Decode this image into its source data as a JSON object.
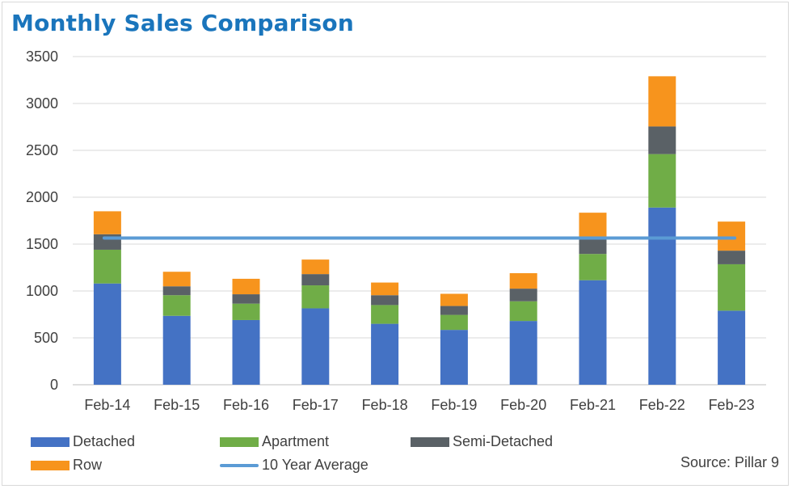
{
  "title": "Monthly Sales Comparison",
  "source": "Source: Pillar 9",
  "chart_data": {
    "type": "bar",
    "stacked": true,
    "title": "Monthly Sales Comparison",
    "categories": [
      "Feb-14",
      "Feb-15",
      "Feb-16",
      "Feb-17",
      "Feb-18",
      "Feb-19",
      "Feb-20",
      "Feb-21",
      "Feb-22",
      "Feb-23"
    ],
    "ylim": [
      0,
      3500
    ],
    "yticks": [
      0,
      500,
      1000,
      1500,
      2000,
      2500,
      3000,
      3500
    ],
    "grid": true,
    "legend_placement": "bottom",
    "series": [
      {
        "name": "Detached",
        "color": "#4472c4",
        "values": [
          1080,
          735,
          690,
          815,
          650,
          585,
          680,
          1115,
          1890,
          790
        ]
      },
      {
        "name": "Apartment",
        "color": "#70ad47",
        "values": [
          360,
          220,
          175,
          245,
          200,
          160,
          210,
          280,
          570,
          495
        ]
      },
      {
        "name": "Semi-Detached",
        "color": "#5a6166",
        "values": [
          165,
          95,
          100,
          120,
          105,
          95,
          135,
          180,
          295,
          145
        ]
      },
      {
        "name": "Row",
        "color": "#f7941d",
        "values": [
          245,
          155,
          165,
          155,
          135,
          130,
          165,
          260,
          535,
          310
        ]
      }
    ],
    "average_line": {
      "name": "10 Year Average",
      "color": "#5b9bd5",
      "value": 1565
    }
  }
}
